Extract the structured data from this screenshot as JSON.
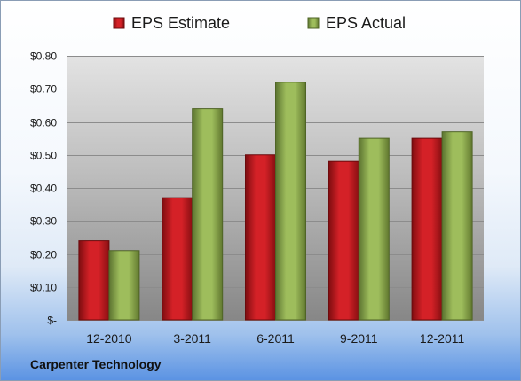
{
  "company_label": "Carpenter Technology",
  "chart_data": {
    "type": "bar",
    "categories": [
      "12-2010",
      "3-2011",
      "6-2011",
      "9-2011",
      "12-2011"
    ],
    "series": [
      {
        "name": "EPS Estimate",
        "values": [
          0.24,
          0.37,
          0.5,
          0.48,
          0.55
        ],
        "color": "#c0161b"
      },
      {
        "name": "EPS Actual",
        "values": [
          0.21,
          0.64,
          0.72,
          0.55,
          0.57
        ],
        "color": "#8aa84a"
      }
    ],
    "ylim": [
      0,
      0.8
    ],
    "yticks": [
      0,
      0.1,
      0.2,
      0.3,
      0.4,
      0.5,
      0.6,
      0.7,
      0.8
    ],
    "ytick_labels": [
      "$-",
      "$0.10",
      "$0.20",
      "$0.30",
      "$0.40",
      "$0.50",
      "$0.60",
      "$0.70",
      "$0.80"
    ],
    "grid": true,
    "legend_position": "top"
  }
}
